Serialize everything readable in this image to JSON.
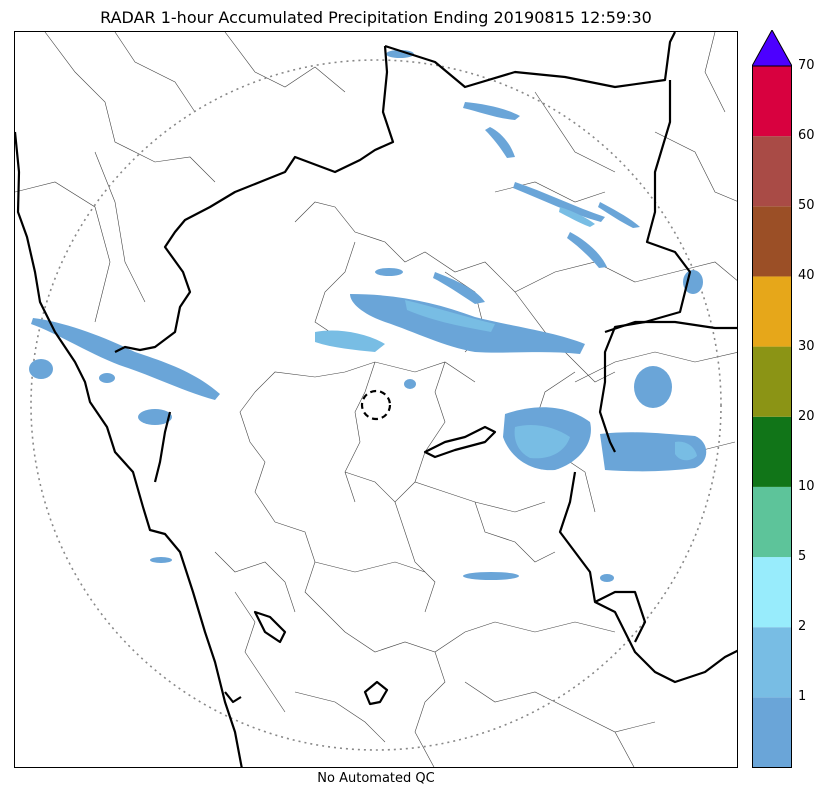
{
  "title": "RADAR 1-hour Accumulated Precipitation Ending 20190815 12:59:30",
  "footer_note": "No Automated QC",
  "colorbar": {
    "levels": [
      "1",
      "2",
      "5",
      "10",
      "20",
      "30",
      "40",
      "50",
      "60",
      "70"
    ],
    "colors": [
      "#6aa5d8",
      "#78bde4",
      "#98ecfc",
      "#5dc49a",
      "#117518",
      "#8b9415",
      "#e6a71a",
      "#9b4f26",
      "#a94b46",
      "#d8013f"
    ],
    "extend_max_color": "#4c00ff"
  },
  "colors": {
    "light_precip": "#6aa5d8",
    "medium_precip": "#78bde4",
    "heavy_precip": "#98ecfc",
    "boundary": "#000000",
    "range_ring": "#888888"
  }
}
